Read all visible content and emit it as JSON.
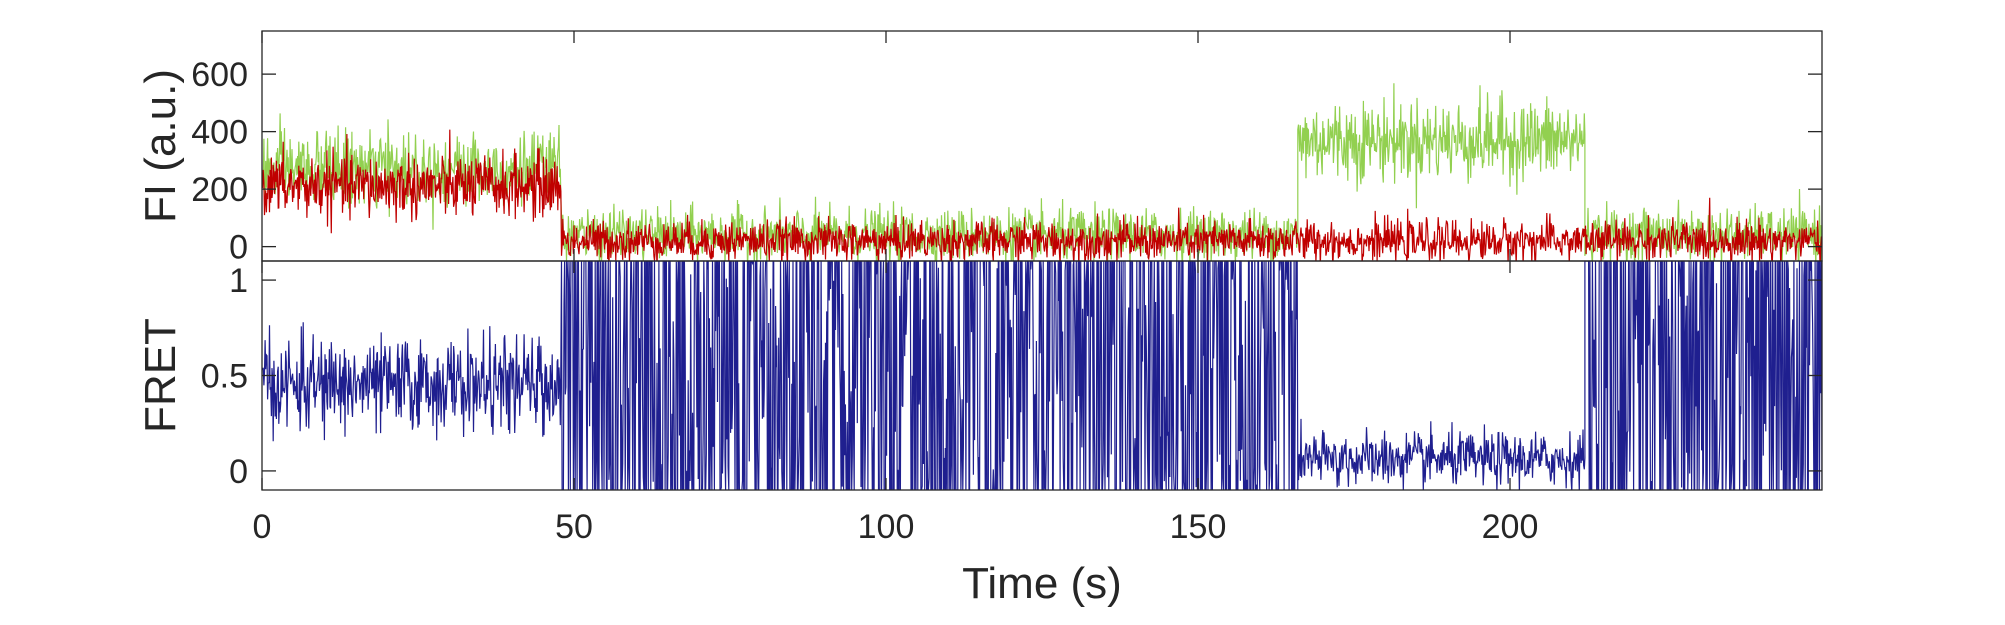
{
  "chart_data": [
    {
      "type": "line",
      "panel": "top",
      "title": "",
      "xlabel": "",
      "ylabel": "FI (a.u.)",
      "xlim": [
        0,
        250
      ],
      "ylim": [
        -50,
        750
      ],
      "yticks": [
        0,
        200,
        400,
        600
      ],
      "ytick_labels": [
        "0",
        "200",
        "400",
        "600"
      ],
      "grid": false,
      "noise_profile": "high-frequency noise over the segment means listed below",
      "series": [
        {
          "color": "#92d050",
          "segments": [
            {
              "x": [
                0,
                48
              ],
              "mean": 270,
              "noise": 65
            },
            {
              "x": [
                48,
                166
              ],
              "mean": 40,
              "noise": 45
            },
            {
              "x": [
                166,
                212
              ],
              "mean": 370,
              "noise": 70
            },
            {
              "x": [
                212,
                250
              ],
              "mean": 40,
              "noise": 45
            }
          ]
        },
        {
          "color": "#c00000",
          "segments": [
            {
              "x": [
                0,
                48
              ],
              "mean": 210,
              "noise": 55
            },
            {
              "x": [
                48,
                250
              ],
              "mean": 20,
              "noise": 35
            }
          ]
        }
      ]
    },
    {
      "type": "line",
      "panel": "bottom",
      "title": "",
      "xlabel": "Time (s)",
      "ylabel": "FRET",
      "xlim": [
        0,
        250
      ],
      "ylim": [
        -0.1,
        1.1
      ],
      "xticks": [
        0,
        50,
        100,
        150,
        200
      ],
      "xtick_labels": [
        "0",
        "50",
        "100",
        "150",
        "200"
      ],
      "yticks": [
        0,
        0.5,
        1
      ],
      "ytick_labels": [
        "0",
        "0.5",
        "1"
      ],
      "grid": false,
      "series": [
        {
          "color": "#1f1f8f",
          "segments": [
            {
              "x": [
                0,
                48
              ],
              "mean": 0.45,
              "noise": 0.12,
              "mode": "noisy"
            },
            {
              "x": [
                48,
                166
              ],
              "low": -0.1,
              "high": 1.1,
              "mode": "saturated"
            },
            {
              "x": [
                166,
                212
              ],
              "mean": 0.06,
              "noise": 0.07,
              "mode": "noisy"
            },
            {
              "x": [
                212,
                250
              ],
              "low": -0.1,
              "high": 1.1,
              "mode": "saturated"
            }
          ]
        }
      ]
    }
  ]
}
